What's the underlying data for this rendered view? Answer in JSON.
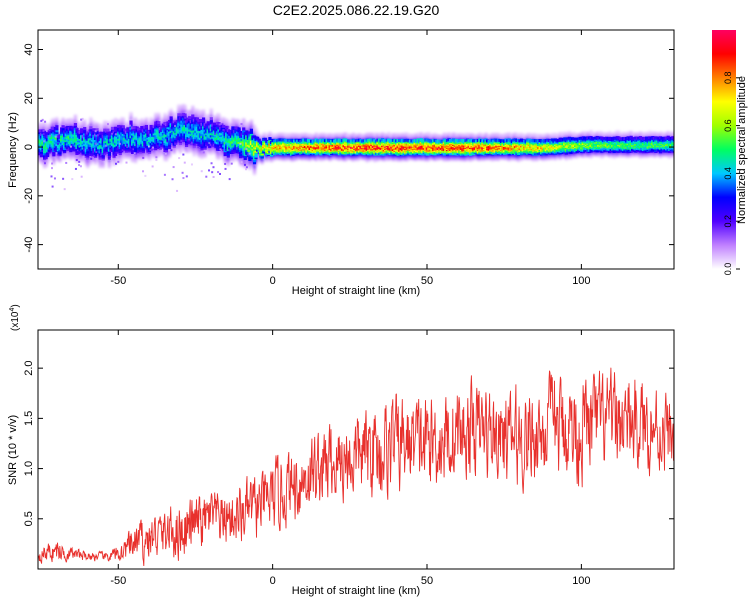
{
  "figure": {
    "title": "C2E2.2025.086.22.19.G20"
  },
  "chart_data": [
    {
      "type": "heatmap",
      "xlabel": "Height of straight line (km)",
      "ylabel": "Frequency (Hz)",
      "xlim": [
        -76,
        130
      ],
      "ylim": [
        -50,
        48
      ],
      "x_ticks": [
        -50,
        0,
        50,
        100
      ],
      "y_ticks": [
        40,
        20,
        0,
        -20,
        -40
      ],
      "x_tick_labels": [
        "-50",
        "0",
        "50",
        "100"
      ],
      "y_tick_labels": [
        "40",
        "20",
        "0",
        "-20",
        "-40"
      ],
      "colorbar": {
        "label": "Normalized spectral amplitude",
        "range": [
          0.0,
          1.0
        ],
        "ticks": [
          0.0,
          0.2,
          0.4,
          0.6,
          0.8
        ],
        "tick_labels": [
          "0.0",
          "0.2",
          "0.4",
          "0.6",
          "0.8"
        ],
        "colormap": [
          "#ffffff",
          "#c080ff",
          "#5000ff",
          "#0000ff",
          "#00c8ff",
          "#00ff60",
          "#a0ff00",
          "#ffff00",
          "#ff8000",
          "#ff0000",
          "#ff0060"
        ]
      },
      "ridge": {
        "x": [
          -76,
          -70,
          -65,
          -60,
          -55,
          -50,
          -45,
          -40,
          -35,
          -30,
          -25,
          -20,
          -15,
          -10,
          -5,
          0,
          10,
          20,
          30,
          40,
          50,
          60,
          70,
          80,
          90,
          100,
          110,
          120,
          130
        ],
        "center_freq": [
          1,
          2,
          3,
          2,
          1,
          3,
          4,
          3,
          5,
          7,
          6,
          5,
          3,
          1,
          0,
          0,
          0,
          0,
          0,
          0,
          0,
          0,
          0,
          0,
          0,
          1,
          1,
          1,
          1
        ],
        "peak_amplitude": [
          0.5,
          0.5,
          0.5,
          0.45,
          0.45,
          0.45,
          0.45,
          0.45,
          0.45,
          0.45,
          0.45,
          0.45,
          0.5,
          0.55,
          0.7,
          0.8,
          0.85,
          0.9,
          0.92,
          0.92,
          0.92,
          0.9,
          0.88,
          0.8,
          0.72,
          0.62,
          0.58,
          0.55,
          0.55
        ]
      }
    },
    {
      "type": "line",
      "xlabel": "Height of straight line (km)",
      "ylabel": "SNR (10 * v/v)",
      "y_multiplier_label": "(x10",
      "y_multiplier_exp": "4",
      "y_multiplier_close": ")",
      "xlim": [
        -76,
        130
      ],
      "ylim": [
        0,
        2.38
      ],
      "x_ticks": [
        -50,
        0,
        50,
        100
      ],
      "y_ticks": [
        0.5,
        1.0,
        1.5,
        2.0
      ],
      "x_tick_labels": [
        "-50",
        "0",
        "50",
        "100"
      ],
      "y_tick_labels": [
        "0.5",
        "1.0",
        "1.5",
        "2.0"
      ],
      "series": [
        {
          "color": "#e8302c",
          "x": [
            -76,
            -70,
            -65,
            -60,
            -55,
            -50,
            -45,
            -40,
            -35,
            -30,
            -25,
            -20,
            -15,
            -10,
            -5,
            0,
            5,
            10,
            15,
            20,
            25,
            30,
            35,
            40,
            45,
            50,
            55,
            60,
            65,
            70,
            75,
            80,
            85,
            90,
            95,
            100,
            105,
            110,
            115,
            120,
            125,
            130
          ],
          "mean": [
            0.15,
            0.18,
            0.15,
            0.13,
            0.12,
            0.14,
            0.25,
            0.3,
            0.35,
            0.4,
            0.45,
            0.5,
            0.5,
            0.55,
            0.6,
            0.7,
            0.8,
            0.9,
            1.0,
            1.05,
            1.1,
            1.15,
            1.2,
            1.25,
            1.25,
            1.25,
            1.3,
            1.35,
            1.4,
            1.35,
            1.3,
            1.3,
            1.35,
            1.4,
            1.4,
            1.4,
            1.45,
            1.45,
            1.45,
            1.45,
            1.4,
            1.3
          ],
          "amplitude": [
            0.1,
            0.15,
            0.08,
            0.06,
            0.06,
            0.1,
            0.25,
            0.3,
            0.3,
            0.4,
            0.35,
            0.35,
            0.35,
            0.4,
            0.4,
            0.45,
            0.45,
            0.5,
            0.5,
            0.55,
            0.55,
            0.55,
            0.6,
            0.6,
            0.6,
            0.6,
            0.6,
            0.6,
            0.6,
            0.6,
            0.6,
            0.6,
            0.6,
            0.65,
            0.65,
            0.65,
            0.6,
            0.6,
            0.6,
            0.55,
            0.55,
            0.5
          ]
        }
      ]
    }
  ]
}
